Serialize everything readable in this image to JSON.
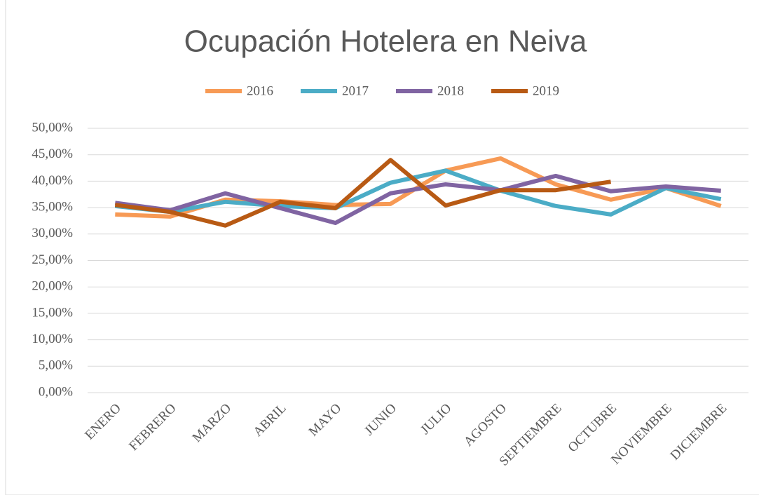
{
  "chart_data": {
    "type": "line",
    "title": "Ocupación Hotelera en Neiva",
    "categories": [
      "ENERO",
      "FEBRERO",
      "MARZO",
      "ABRIL",
      "MAYO",
      "JUNIO",
      "JULIO",
      "AGOSTO",
      "SEPTIEMBRE",
      "OCTUBRE",
      "NOVIEMBRE",
      "DICIEMBRE"
    ],
    "series": [
      {
        "name": "2016",
        "color": "#f79a55",
        "values": [
          33.7,
          33.3,
          36.5,
          36.2,
          35.5,
          35.7,
          42.0,
          44.3,
          39.4,
          36.5,
          38.7,
          35.3
        ]
      },
      {
        "name": "2017",
        "color": "#4bacc6",
        "values": [
          35.3,
          34.2,
          36.1,
          35.3,
          34.9,
          39.7,
          42.0,
          38.2,
          35.3,
          33.7,
          38.7,
          36.6
        ]
      },
      {
        "name": "2018",
        "color": "#8064a2",
        "values": [
          35.9,
          34.5,
          37.7,
          34.9,
          32.1,
          37.7,
          39.4,
          38.3,
          41.0,
          38.1,
          39.0,
          38.2
        ]
      },
      {
        "name": "2019",
        "color": "#b85a14",
        "values": [
          35.5,
          34.2,
          31.6,
          36.1,
          34.9,
          44.0,
          35.4,
          38.3,
          38.3,
          39.9,
          null,
          null
        ]
      }
    ],
    "ylim": [
      0,
      50
    ],
    "yticks": [
      {
        "value": 0,
        "label": "0,00%"
      },
      {
        "value": 5,
        "label": "5,00%"
      },
      {
        "value": 10,
        "label": "10,00%"
      },
      {
        "value": 15,
        "label": "15,00%"
      },
      {
        "value": 20,
        "label": "20,00%"
      },
      {
        "value": 25,
        "label": "25,00%"
      },
      {
        "value": 30,
        "label": "30,00%"
      },
      {
        "value": 35,
        "label": "35,00%"
      },
      {
        "value": 40,
        "label": "40,00%"
      },
      {
        "value": 45,
        "label": "45,00%"
      },
      {
        "value": 50,
        "label": "50,00%"
      }
    ],
    "grid": true,
    "legend": "top"
  }
}
